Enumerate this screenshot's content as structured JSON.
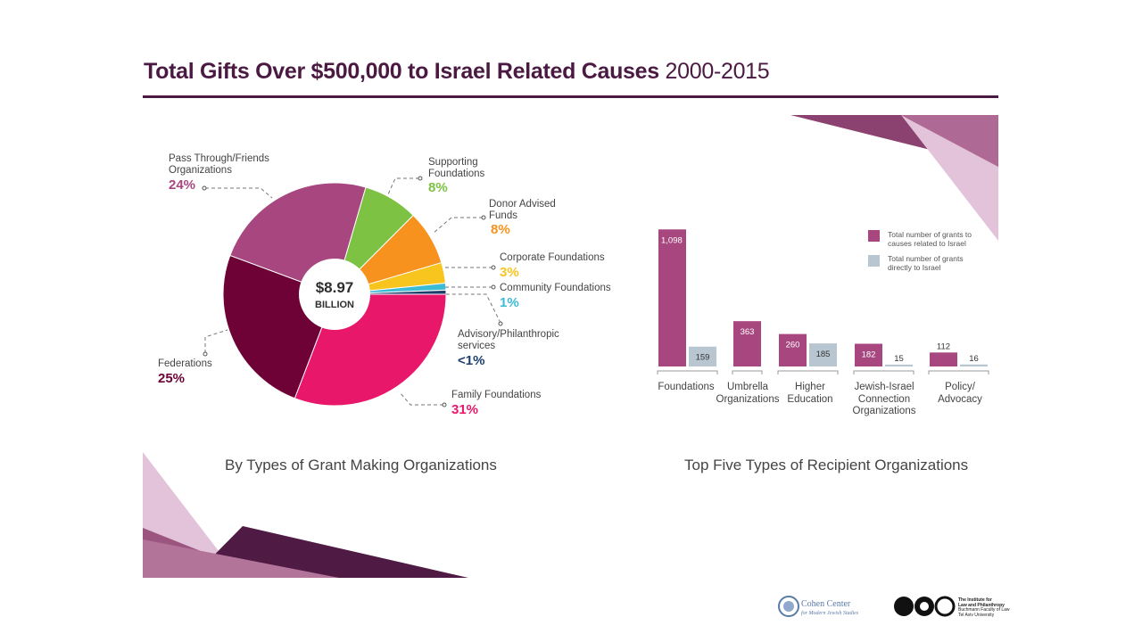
{
  "title": {
    "bold": "Total Gifts Over $500,000 to Israel Related Causes",
    "years": "2000-2015"
  },
  "pie": {
    "center_amount": "$8.97",
    "center_unit": "BILLION",
    "subtitle": "By Types of Grant Making Organizations"
  },
  "bars": {
    "subtitle": "Top Five Types of Recipient Organizations",
    "legend": {
      "related_l1": "Total number of grants to",
      "related_l2": "causes related to Israel",
      "direct_l1": "Total number of grants",
      "direct_l2": "directly to Israel"
    }
  },
  "logos": {
    "cohen_name": "Cohen Center",
    "cohen_sub": "for Modern Jewish Studies",
    "inst_l1": "The Institute for",
    "inst_l2": "Law and Philanthropy",
    "inst_l3": "Buchmann Faculty of Law",
    "inst_l4": "Tel Aviv University"
  },
  "colors": {
    "title": "#4a1a42",
    "pass_through": "#a8477f",
    "supporting": "#7dc242",
    "donor_advised": "#f7921e",
    "corporate": "#f7c51e",
    "community": "#3bbbd4",
    "advisory": "#1d3f6e",
    "family": "#e8176a",
    "federations": "#6e0236",
    "bar_related": "#a8477f",
    "bar_direct": "#b8c6d2"
  },
  "chart_data": [
    {
      "type": "pie",
      "title": "By Types of Grant Making Organizations",
      "total": "$8.97 BILLION",
      "slices": [
        {
          "label_l1": "Family Foundations",
          "label_l2": "",
          "value": 31,
          "pct_label": "31%",
          "color": "#e8176a"
        },
        {
          "label_l1": "Federations",
          "label_l2": "",
          "value": 25,
          "pct_label": "25%",
          "color": "#6e0236"
        },
        {
          "label_l1": "Pass Through/Friends",
          "label_l2": "Organizations",
          "value": 24,
          "pct_label": "24%",
          "color": "#a8477f"
        },
        {
          "label_l1": "Supporting",
          "label_l2": "Foundations",
          "value": 8,
          "pct_label": "8%",
          "color": "#7dc242"
        },
        {
          "label_l1": "Donor Advised",
          "label_l2": "Funds",
          "value": 8,
          "pct_label": "8%",
          "color": "#f7921e"
        },
        {
          "label_l1": "Corporate Foundations",
          "label_l2": "",
          "value": 3,
          "pct_label": "3%",
          "color": "#f7c51e"
        },
        {
          "label_l1": "Community Foundations",
          "label_l2": "",
          "value": 1,
          "pct_label": "1%",
          "color": "#3bbbd4"
        },
        {
          "label_l1": "Advisory/Philanthropic",
          "label_l2": "services",
          "value": 0.6,
          "pct_label": "<1%",
          "color": "#1d3f6e"
        }
      ]
    },
    {
      "type": "bar",
      "title": "Top Five Types of Recipient Organizations",
      "categories": [
        [
          "Foundations"
        ],
        [
          "Umbrella",
          "Organizations"
        ],
        [
          "Higher",
          "Education"
        ],
        [
          "Jewish-Israel",
          "Connection",
          "Organizations"
        ],
        [
          "Policy/",
          "Advocacy"
        ]
      ],
      "series": [
        {
          "name": "Total number of grants to causes related to Israel",
          "values": [
            1098,
            363,
            260,
            182,
            112
          ],
          "value_labels": [
            "1,098",
            "363",
            "260",
            "182",
            "112"
          ],
          "color": "#a8477f"
        },
        {
          "name": "Total number of grants directly to Israel",
          "values": [
            159,
            null,
            185,
            15,
            16
          ],
          "value_labels": [
            "159",
            "",
            "185",
            "15",
            "16"
          ],
          "color": "#b8c6d2"
        }
      ],
      "ylim": [
        0,
        1100
      ]
    }
  ]
}
